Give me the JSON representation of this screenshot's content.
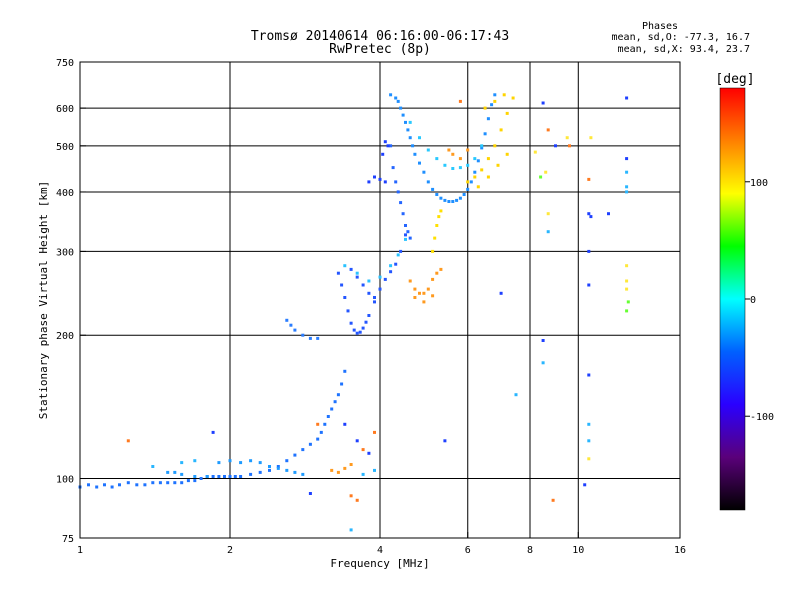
{
  "chart_data": {
    "type": "scatter",
    "title": "Tromsø 20140614 06:16:00-06:17:43",
    "subtitle": "RwPretec (8p)",
    "stats": {
      "header": "Phases",
      "line1": "mean, sd,O: -77.3, 16.7",
      "line2": "mean, sd,X:  93.4, 23.7"
    },
    "xlabel": "Frequency [MHz]",
    "ylabel": "Stationary phase Virtual Height [km]",
    "x_scale": "log",
    "y_scale": "log",
    "xlim": [
      1,
      16
    ],
    "ylim": [
      75,
      750
    ],
    "x_ticks": [
      {
        "value": 1,
        "label": "1"
      },
      {
        "value": 2,
        "label": "2"
      },
      {
        "value": 4,
        "label": "4"
      },
      {
        "value": 6,
        "label": "6"
      },
      {
        "value": 8,
        "label": "8"
      },
      {
        "value": 10,
        "label": "10"
      },
      {
        "value": 16,
        "label": "16"
      }
    ],
    "y_ticks": [
      {
        "value": 75,
        "label": "75"
      },
      {
        "value": 100,
        "label": "100"
      },
      {
        "value": 200,
        "label": "200"
      },
      {
        "value": 300,
        "label": "300"
      },
      {
        "value": 400,
        "label": "400"
      },
      {
        "value": 500,
        "label": "500"
      },
      {
        "value": 600,
        "label": "600"
      },
      {
        "value": 750,
        "label": "750"
      }
    ],
    "x_gridlines": [
      2,
      4,
      6,
      8,
      10
    ],
    "y_gridlines": [
      100,
      200,
      300,
      400,
      500,
      600
    ],
    "grid": true,
    "colorbar": {
      "label": "[deg]",
      "range": [
        -180,
        180
      ],
      "ticks": [
        {
          "value": 100,
          "label": "100"
        },
        {
          "value": 0,
          "label": "0"
        },
        {
          "value": -100,
          "label": "-100"
        }
      ],
      "colors": [
        "#000000",
        "#5a007a",
        "#2a00ff",
        "#0060ff",
        "#00ffff",
        "#00ff00",
        "#ffff00",
        "#ff8000",
        "#ff0000"
      ]
    },
    "series": [
      {
        "color": "#1e73ff",
        "points": [
          [
            1.0,
            96
          ],
          [
            1.04,
            97
          ],
          [
            1.08,
            96
          ],
          [
            1.12,
            97
          ],
          [
            1.16,
            96
          ],
          [
            1.2,
            97
          ],
          [
            1.25,
            98
          ],
          [
            1.3,
            97
          ],
          [
            1.35,
            97
          ],
          [
            1.4,
            98
          ],
          [
            1.45,
            98
          ],
          [
            1.5,
            98
          ],
          [
            1.55,
            98
          ],
          [
            1.6,
            98
          ],
          [
            1.65,
            99
          ],
          [
            1.7,
            99
          ],
          [
            1.75,
            100
          ],
          [
            1.8,
            101
          ],
          [
            1.85,
            101
          ],
          [
            1.9,
            101
          ],
          [
            1.95,
            101
          ],
          [
            2.0,
            101
          ],
          [
            2.05,
            101
          ],
          [
            2.1,
            101
          ],
          [
            2.2,
            102
          ],
          [
            2.3,
            103
          ],
          [
            2.4,
            104
          ],
          [
            2.5,
            106
          ],
          [
            2.6,
            109
          ],
          [
            2.7,
            112
          ],
          [
            2.8,
            115
          ],
          [
            2.9,
            118
          ],
          [
            3.0,
            121
          ],
          [
            3.05,
            125
          ],
          [
            3.1,
            130
          ],
          [
            3.15,
            135
          ],
          [
            3.2,
            140
          ],
          [
            3.25,
            145
          ],
          [
            3.3,
            150
          ],
          [
            3.35,
            158
          ],
          [
            3.4,
            168
          ]
        ]
      },
      {
        "color": "#1e9bff",
        "points": [
          [
            1.5,
            103
          ],
          [
            1.55,
            103
          ],
          [
            1.6,
            102
          ],
          [
            1.7,
            101
          ],
          [
            1.8,
            101
          ],
          [
            1.9,
            108
          ],
          [
            2.0,
            109
          ],
          [
            2.1,
            108
          ],
          [
            2.2,
            109
          ],
          [
            2.3,
            108
          ],
          [
            2.4,
            106
          ],
          [
            2.5,
            105
          ],
          [
            2.6,
            104
          ],
          [
            2.7,
            103
          ],
          [
            2.8,
            102
          ]
        ]
      },
      {
        "color": "#2a7dff",
        "points": [
          [
            2.6,
            215
          ],
          [
            2.65,
            210
          ],
          [
            2.7,
            205
          ],
          [
            2.8,
            200
          ],
          [
            2.9,
            197
          ],
          [
            3.0,
            197
          ]
        ]
      },
      {
        "color": "#2456ff",
        "points": [
          [
            3.3,
            270
          ],
          [
            3.35,
            255
          ],
          [
            3.4,
            240
          ],
          [
            3.45,
            225
          ],
          [
            3.5,
            212
          ],
          [
            3.55,
            205
          ],
          [
            3.6,
            202
          ],
          [
            3.65,
            203
          ],
          [
            3.7,
            207
          ],
          [
            3.75,
            213
          ],
          [
            3.8,
            220
          ],
          [
            3.9,
            235
          ],
          [
            4.0,
            250
          ],
          [
            4.1,
            262
          ],
          [
            4.2,
            272
          ],
          [
            4.3,
            282
          ],
          [
            4.4,
            300
          ],
          [
            4.5,
            325
          ],
          [
            3.5,
            275
          ],
          [
            3.6,
            265
          ],
          [
            3.7,
            255
          ],
          [
            3.8,
            245
          ],
          [
            3.9,
            240
          ]
        ]
      },
      {
        "color": "#29c2ff",
        "points": [
          [
            3.4,
            280
          ],
          [
            3.6,
            270
          ],
          [
            3.8,
            260
          ],
          [
            4.0,
            265
          ],
          [
            4.2,
            280
          ],
          [
            4.35,
            295
          ],
          [
            4.5,
            318
          ]
        ]
      },
      {
        "color": "#1f8fff",
        "points": [
          [
            4.2,
            640
          ],
          [
            4.3,
            630
          ],
          [
            4.35,
            620
          ],
          [
            4.4,
            600
          ],
          [
            4.45,
            580
          ],
          [
            4.5,
            560
          ],
          [
            4.55,
            540
          ],
          [
            4.6,
            520
          ],
          [
            4.65,
            500
          ],
          [
            4.7,
            480
          ],
          [
            4.8,
            460
          ],
          [
            4.9,
            440
          ],
          [
            5.0,
            420
          ],
          [
            5.1,
            405
          ],
          [
            5.2,
            395
          ],
          [
            5.3,
            388
          ],
          [
            5.4,
            384
          ],
          [
            5.5,
            382
          ],
          [
            5.6,
            382
          ],
          [
            5.7,
            384
          ],
          [
            5.8,
            388
          ],
          [
            5.9,
            395
          ],
          [
            6.0,
            405
          ],
          [
            6.1,
            420
          ],
          [
            6.2,
            440
          ],
          [
            6.3,
            465
          ],
          [
            6.4,
            495
          ],
          [
            6.5,
            530
          ],
          [
            6.6,
            570
          ],
          [
            6.7,
            610
          ],
          [
            6.8,
            640
          ]
        ]
      },
      {
        "color": "#2566ff",
        "points": [
          [
            4.2,
            500
          ],
          [
            4.25,
            450
          ],
          [
            4.3,
            420
          ],
          [
            4.35,
            400
          ],
          [
            4.4,
            380
          ],
          [
            4.45,
            360
          ],
          [
            4.5,
            340
          ],
          [
            4.55,
            330
          ],
          [
            4.6,
            320
          ]
        ]
      },
      {
        "color": "#29c9ff",
        "points": [
          [
            4.6,
            560
          ],
          [
            4.8,
            520
          ],
          [
            5.0,
            490
          ],
          [
            5.2,
            470
          ],
          [
            5.4,
            455
          ],
          [
            5.6,
            448
          ],
          [
            5.8,
            450
          ],
          [
            6.0,
            455
          ],
          [
            6.2,
            470
          ],
          [
            6.4,
            500
          ]
        ]
      },
      {
        "color": "#ffd400",
        "points": [
          [
            6.0,
            420
          ],
          [
            6.2,
            430
          ],
          [
            6.4,
            445
          ],
          [
            6.6,
            470
          ],
          [
            6.8,
            500
          ],
          [
            7.0,
            540
          ],
          [
            7.2,
            585
          ],
          [
            7.4,
            630
          ],
          [
            6.5,
            600
          ],
          [
            6.8,
            620
          ],
          [
            7.1,
            640
          ],
          [
            6.3,
            410
          ],
          [
            6.6,
            430
          ],
          [
            6.9,
            455
          ],
          [
            7.2,
            480
          ]
        ]
      },
      {
        "color": "#ff9a1f",
        "points": [
          [
            4.6,
            260
          ],
          [
            4.7,
            250
          ],
          [
            4.8,
            245
          ],
          [
            4.9,
            245
          ],
          [
            5.0,
            250
          ],
          [
            5.1,
            262
          ],
          [
            5.2,
            270
          ],
          [
            5.3,
            275
          ],
          [
            4.7,
            240
          ],
          [
            4.9,
            235
          ],
          [
            5.1,
            242
          ],
          [
            5.5,
            490
          ],
          [
            5.6,
            480
          ],
          [
            5.8,
            470
          ],
          [
            6.0,
            490
          ],
          [
            3.2,
            104
          ],
          [
            3.3,
            103
          ],
          [
            3.4,
            105
          ],
          [
            3.5,
            107
          ]
        ]
      },
      {
        "color": "#ffe000",
        "points": [
          [
            5.1,
            300
          ],
          [
            5.15,
            320
          ],
          [
            5.2,
            340
          ],
          [
            5.25,
            355
          ],
          [
            5.3,
            365
          ]
        ]
      },
      {
        "color": "#1e40ff",
        "points": [
          [
            3.8,
            420
          ],
          [
            3.9,
            430
          ],
          [
            4.0,
            425
          ],
          [
            4.1,
            420
          ],
          [
            4.05,
            480
          ],
          [
            4.1,
            510
          ],
          [
            4.15,
            500
          ],
          [
            8.5,
            615
          ],
          [
            9.0,
            500
          ],
          [
            10.5,
            360
          ],
          [
            10.5,
            300
          ],
          [
            10.6,
            355
          ],
          [
            12.5,
            470
          ],
          [
            12.5,
            630
          ],
          [
            10.5,
            255
          ],
          [
            10.5,
            165
          ],
          [
            11.5,
            360
          ],
          [
            5.4,
            120
          ],
          [
            7.0,
            245
          ],
          [
            8.5,
            195
          ],
          [
            2.9,
            93
          ],
          [
            3.4,
            130
          ],
          [
            3.6,
            120
          ],
          [
            3.8,
            113
          ],
          [
            1.85,
            125
          ],
          [
            10.3,
            97
          ]
        ]
      },
      {
        "color": "#29b6ff",
        "points": [
          [
            8.5,
            175
          ],
          [
            8.7,
            330
          ],
          [
            10.5,
            130
          ],
          [
            10.5,
            120
          ],
          [
            12.5,
            400
          ],
          [
            12.5,
            410
          ],
          [
            12.5,
            440
          ],
          [
            7.5,
            150
          ],
          [
            3.5,
            78
          ],
          [
            1.4,
            106
          ],
          [
            1.6,
            108
          ],
          [
            1.7,
            109
          ],
          [
            3.7,
            102
          ],
          [
            3.9,
            104
          ]
        ]
      },
      {
        "color": "#ff7a1f",
        "points": [
          [
            1.25,
            120
          ],
          [
            8.7,
            540
          ],
          [
            8.9,
            90
          ],
          [
            3.0,
            130
          ],
          [
            3.7,
            115
          ],
          [
            3.9,
            125
          ],
          [
            3.5,
            92
          ],
          [
            3.6,
            90
          ],
          [
            10.5,
            425
          ],
          [
            5.8,
            620
          ],
          [
            9.6,
            500
          ]
        ]
      },
      {
        "color": "#ffe83a",
        "points": [
          [
            8.6,
            440
          ],
          [
            8.7,
            360
          ],
          [
            10.5,
            110
          ],
          [
            10.6,
            520
          ],
          [
            12.5,
            280
          ],
          [
            12.5,
            260
          ],
          [
            12.5,
            250
          ],
          [
            8.2,
            485
          ],
          [
            9.5,
            520
          ]
        ]
      },
      {
        "color": "#66ff33",
        "points": [
          [
            8.4,
            430
          ],
          [
            12.5,
            225
          ],
          [
            12.6,
            235
          ]
        ]
      }
    ]
  }
}
